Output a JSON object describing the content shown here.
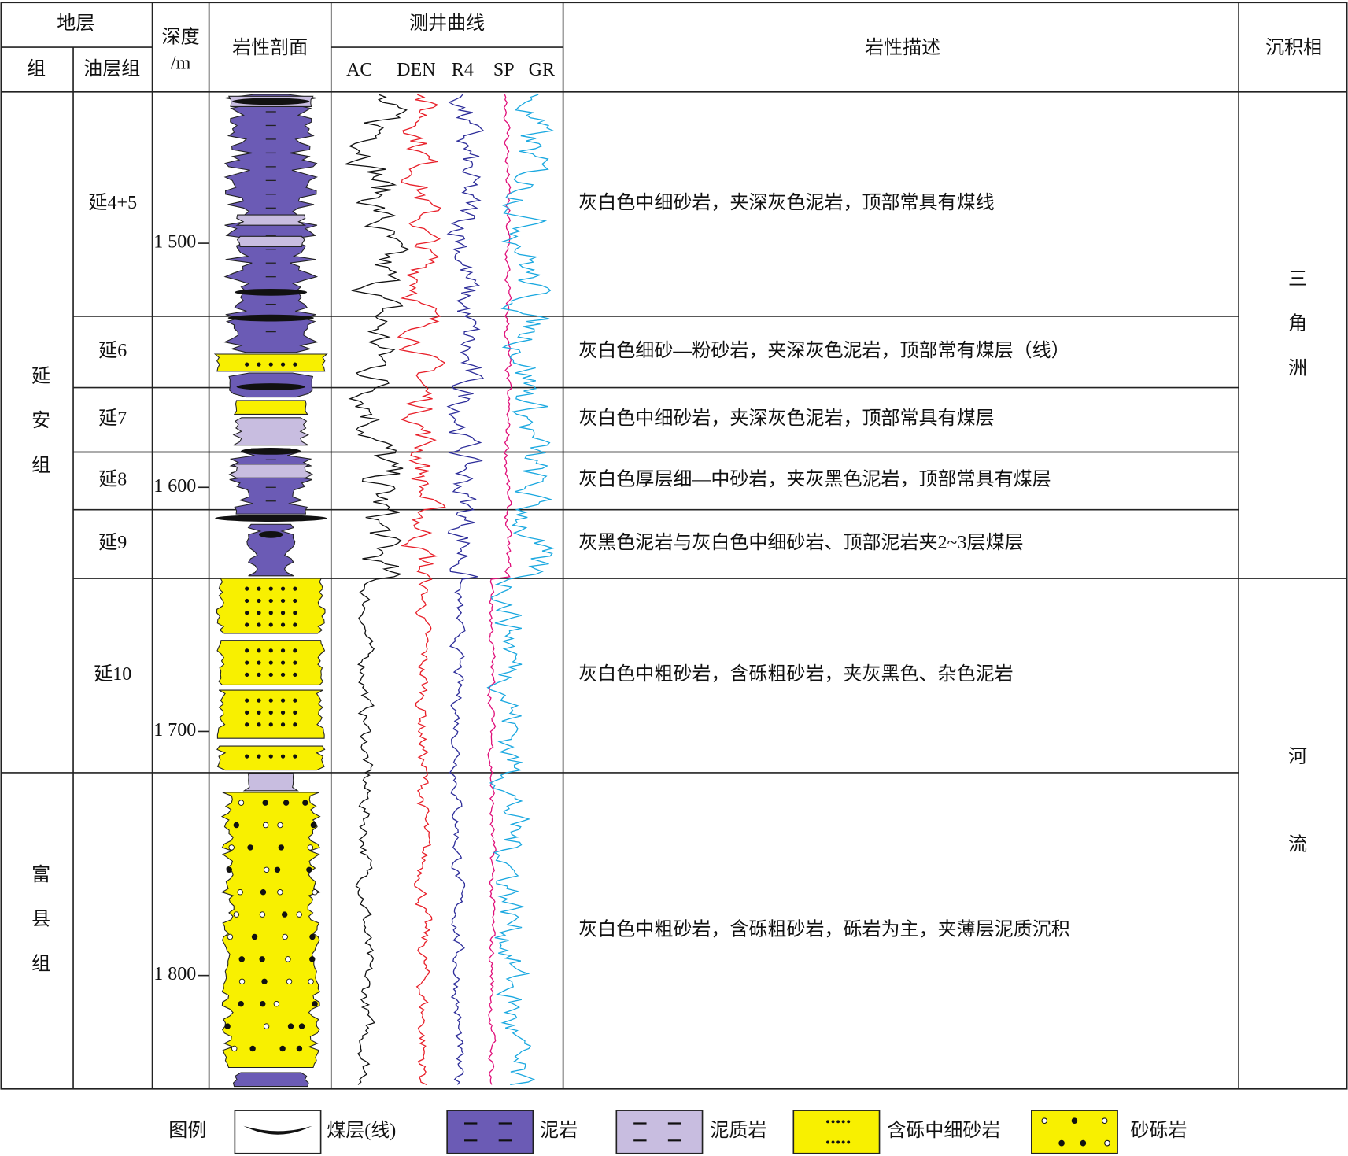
{
  "header": {
    "stratum": "地层",
    "formation": "组",
    "member": "油层组",
    "depth": "深度",
    "depth_unit": "/m",
    "lithology_profile": "岩性剖面",
    "logs": "测井曲线",
    "curves": [
      "AC",
      "DEN",
      "R4",
      "SP",
      "GR"
    ],
    "description": "岩性描述",
    "facies": "沉积相"
  },
  "formations": [
    "延安组",
    "富县组"
  ],
  "members": [
    {
      "name": "延4+5",
      "description": "灰白色中细砂岩，夹深灰色泥岩，顶部常具有煤线"
    },
    {
      "name": "延6",
      "description": "灰白色细砂—粉砂岩，夹深灰色泥岩，顶部常有煤层（线）"
    },
    {
      "name": "延7",
      "description": "灰白色中细砂岩，夹深灰色泥岩，顶部常具有煤层"
    },
    {
      "name": "延8",
      "description": "灰白色厚层细—中砂岩，夹灰黑色泥岩，顶部常具有煤层"
    },
    {
      "name": "延9",
      "description": "灰黑色泥岩与灰白色中细砂岩、顶部泥岩夹2~3层煤层"
    },
    {
      "name": "延10",
      "description": "灰白色中粗砂岩，含砾粗砂岩，夹灰黑色、杂色泥岩"
    },
    {
      "name": null,
      "description": "灰白色中粗砂岩，含砾粗砂岩，砾岩为主，夹薄层泥质沉积"
    }
  ],
  "depth_ticks": [
    {
      "value": 1500,
      "label": "1 500"
    },
    {
      "value": 1600,
      "label": "1 600"
    },
    {
      "value": 1700,
      "label": "1 700"
    },
    {
      "value": 1800,
      "label": "1 800"
    }
  ],
  "facies": [
    "三角洲",
    "河流"
  ],
  "legend": {
    "title": "图例",
    "items": [
      "煤层(线)",
      "泥岩",
      "泥质岩",
      "含砾中细砂岩",
      "砂砾岩"
    ]
  }
}
